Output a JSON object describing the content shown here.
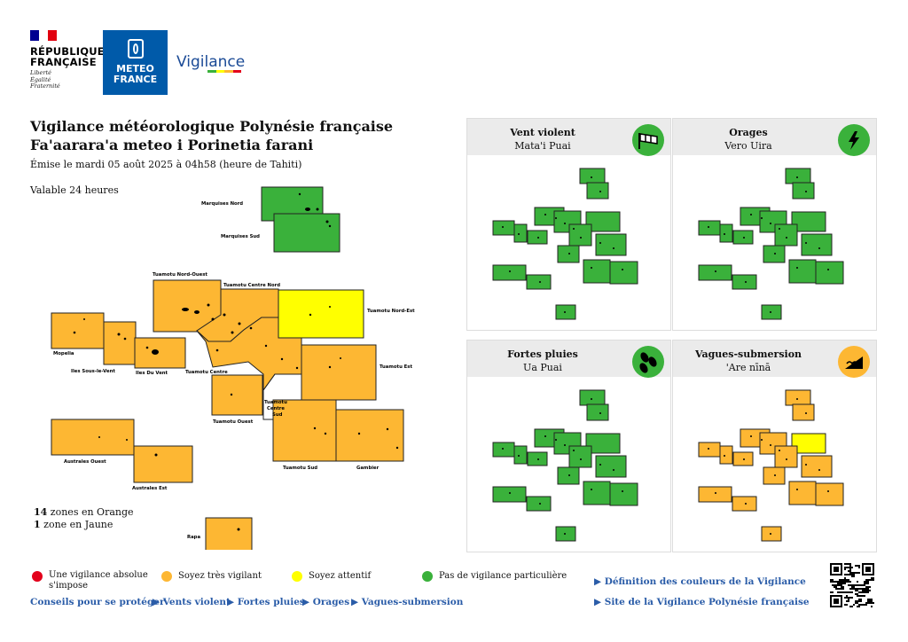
{
  "header": {
    "republique": "RÉPUBLIQUE\nFRANÇAISE",
    "devise": "Liberté\nÉgalité\nFraternité",
    "meteo_france": "METEO\nFRANCE",
    "vigilance_word": "Vigilance"
  },
  "title_fr": "Vigilance météorologique Polynésie française",
  "title_tah": "Fa'aarara'a meteo i Porinetia farani",
  "issued": "Émise le mardi 05 août 2025 à 04h58 (heure de Tahiti)",
  "validity": "Valable 24 heures",
  "colors": {
    "red": "#e3001b",
    "orange": "#fdb733",
    "yellow": "#ffff00",
    "green": "#3ab13b"
  },
  "main_map": {
    "zones": [
      {
        "name": "Marquises Nord",
        "level": "green"
      },
      {
        "name": "Marquises Sud",
        "level": "green"
      },
      {
        "name": "Tuamotu Nord-Ouest",
        "level": "orange"
      },
      {
        "name": "Tuamotu Centre Nord",
        "level": "orange"
      },
      {
        "name": "Tuamotu Nord-Est",
        "level": "yellow"
      },
      {
        "name": "Mopelia",
        "level": "orange"
      },
      {
        "name": "Iles Sous-le-Vent",
        "level": "orange"
      },
      {
        "name": "Iles Du Vent",
        "level": "orange"
      },
      {
        "name": "Tuamotu Centre",
        "level": "orange"
      },
      {
        "name": "Tuamotu Est",
        "level": "orange"
      },
      {
        "name": "Tuamotu Ouest",
        "level": "orange"
      },
      {
        "name": "Tuamotu Centre Sud",
        "level": "orange"
      },
      {
        "name": "Tuamotu Sud",
        "level": "orange"
      },
      {
        "name": "Gambier",
        "level": "orange"
      },
      {
        "name": "Australes Ouest",
        "level": "orange"
      },
      {
        "name": "Australes Est",
        "level": "orange"
      },
      {
        "name": "Rapa",
        "level": "orange"
      }
    ],
    "labels": {
      "marquises_nord": "Marquises Nord",
      "marquises_sud": "Marquises Sud",
      "tuamotu_no": "Tuamotu Nord-Ouest",
      "tuamotu_cn": "Tuamotu Centre Nord",
      "tuamotu_ne": "Tuamotu Nord-Est",
      "mopelia": "Mopelia",
      "isv": "Iles Sous-le-Vent",
      "idv": "Iles Du Vent",
      "tuamotu_c": "Tuamotu Centre",
      "tuamotu_e": "Tuamotu Est",
      "tuamotu_o": "Tuamotu Ouest",
      "tcs1": "Tuamotu",
      "tcs2": "Centre",
      "tcs3": "Sud",
      "tuamotu_s": "Tuamotu Sud",
      "gambier": "Gambier",
      "australes_o": "Australes Ouest",
      "australes_e": "Australes Est",
      "rapa": "Rapa"
    }
  },
  "counts": {
    "orange_num": "14",
    "orange_text": " zones en Orange",
    "yellow_num": "1",
    "yellow_text": " zone en Jaune"
  },
  "panels": [
    {
      "title": "Vent violent",
      "subtitle": "Mata'i Puai",
      "icon": "wind-sock-icon",
      "icon_color": "#3ab13b"
    },
    {
      "title": "Orages",
      "subtitle": "Vero Uira",
      "icon": "lightning-icon",
      "icon_color": "#3ab13b"
    },
    {
      "title": "Fortes pluies",
      "subtitle": "Ua Puai",
      "icon": "rain-icon",
      "icon_color": "#3ab13b"
    },
    {
      "title": "Vagues-submersion",
      "subtitle": "'Are nīnā",
      "icon": "waves-icon",
      "icon_color": "#fdb733"
    }
  ],
  "legend": {
    "red": "Une vigilance absolue\ns'impose",
    "orange": "Soyez très vigilant",
    "yellow": "Soyez attentif",
    "green": "Pas de vigilance particulière"
  },
  "links": {
    "conseils": "Conseils pour se protéger",
    "vents": "▶ Vents violent",
    "pluies": "▶ Fortes pluies",
    "orages": "▶ Orages",
    "vagues": "▶ Vagues-submersion",
    "definition": "▶ Définition des couleurs de la Vigilance",
    "site": "▶ Site de la Vigilance Polynésie française"
  }
}
